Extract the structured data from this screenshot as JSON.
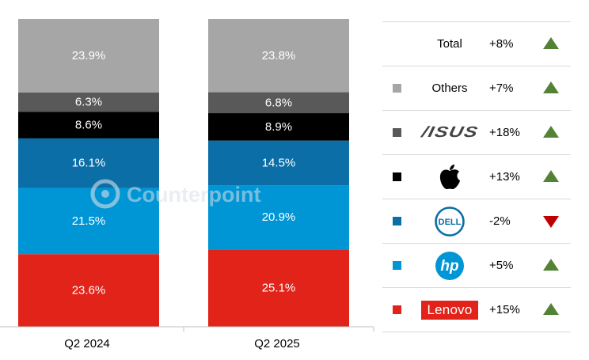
{
  "chart_data": {
    "type": "bar",
    "stacked": true,
    "categories": [
      "Q2 2024",
      "Q2 2025"
    ],
    "series": [
      {
        "name": "Lenovo",
        "values": [
          23.6,
          25.1
        ],
        "labels": [
          "23.6%",
          "25.1%"
        ],
        "color": "#e2231a"
      },
      {
        "name": "HP",
        "values": [
          21.5,
          20.9
        ],
        "labels": [
          "21.5%",
          "20.9%"
        ],
        "color": "#0096d6"
      },
      {
        "name": "Dell",
        "values": [
          16.1,
          14.5
        ],
        "labels": [
          "16.1%",
          "14.5%"
        ],
        "color": "#0b6ea7"
      },
      {
        "name": "Apple",
        "values": [
          8.6,
          8.9
        ],
        "labels": [
          "8.6%",
          "8.9%"
        ],
        "color": "#000000"
      },
      {
        "name": "ASUS",
        "values": [
          6.3,
          6.8
        ],
        "labels": [
          "6.3%",
          "6.8%"
        ],
        "color": "#595959"
      },
      {
        "name": "Others",
        "values": [
          23.9,
          23.8
        ],
        "labels": [
          "23.9%",
          "23.8%"
        ],
        "color": "#a6a6a6"
      }
    ],
    "ylim": [
      0,
      100
    ],
    "grid": false,
    "legend_position": "right"
  },
  "watermark": "Counterpoint",
  "legend": {
    "rows": [
      {
        "brand": "Total",
        "growth": "+8%",
        "trend": "up",
        "swatch": ""
      },
      {
        "brand": "Others",
        "growth": "+7%",
        "trend": "up",
        "swatch": "#a6a6a6"
      },
      {
        "brand": "ASUS",
        "logo": "asus-logo",
        "logo_text": "/ISUS",
        "growth": "+18%",
        "trend": "up",
        "swatch": "#595959"
      },
      {
        "brand": "Apple",
        "logo": "apple-logo",
        "growth": "+13%",
        "trend": "up",
        "swatch": "#000000"
      },
      {
        "brand": "Dell",
        "logo": "dell-logo",
        "logo_text": "DELL",
        "growth": "-2%",
        "trend": "down",
        "swatch": "#0b6ea7"
      },
      {
        "brand": "HP",
        "logo": "hp-logo",
        "logo_text": "hp",
        "growth": "+5%",
        "trend": "up",
        "swatch": "#0096d6"
      },
      {
        "brand": "Lenovo",
        "logo": "lenovo-logo",
        "logo_text": "Lenovo",
        "growth": "+15%",
        "trend": "up",
        "swatch": "#e2231a"
      }
    ]
  },
  "colors": {
    "up": "#548235",
    "down": "#c00000"
  }
}
